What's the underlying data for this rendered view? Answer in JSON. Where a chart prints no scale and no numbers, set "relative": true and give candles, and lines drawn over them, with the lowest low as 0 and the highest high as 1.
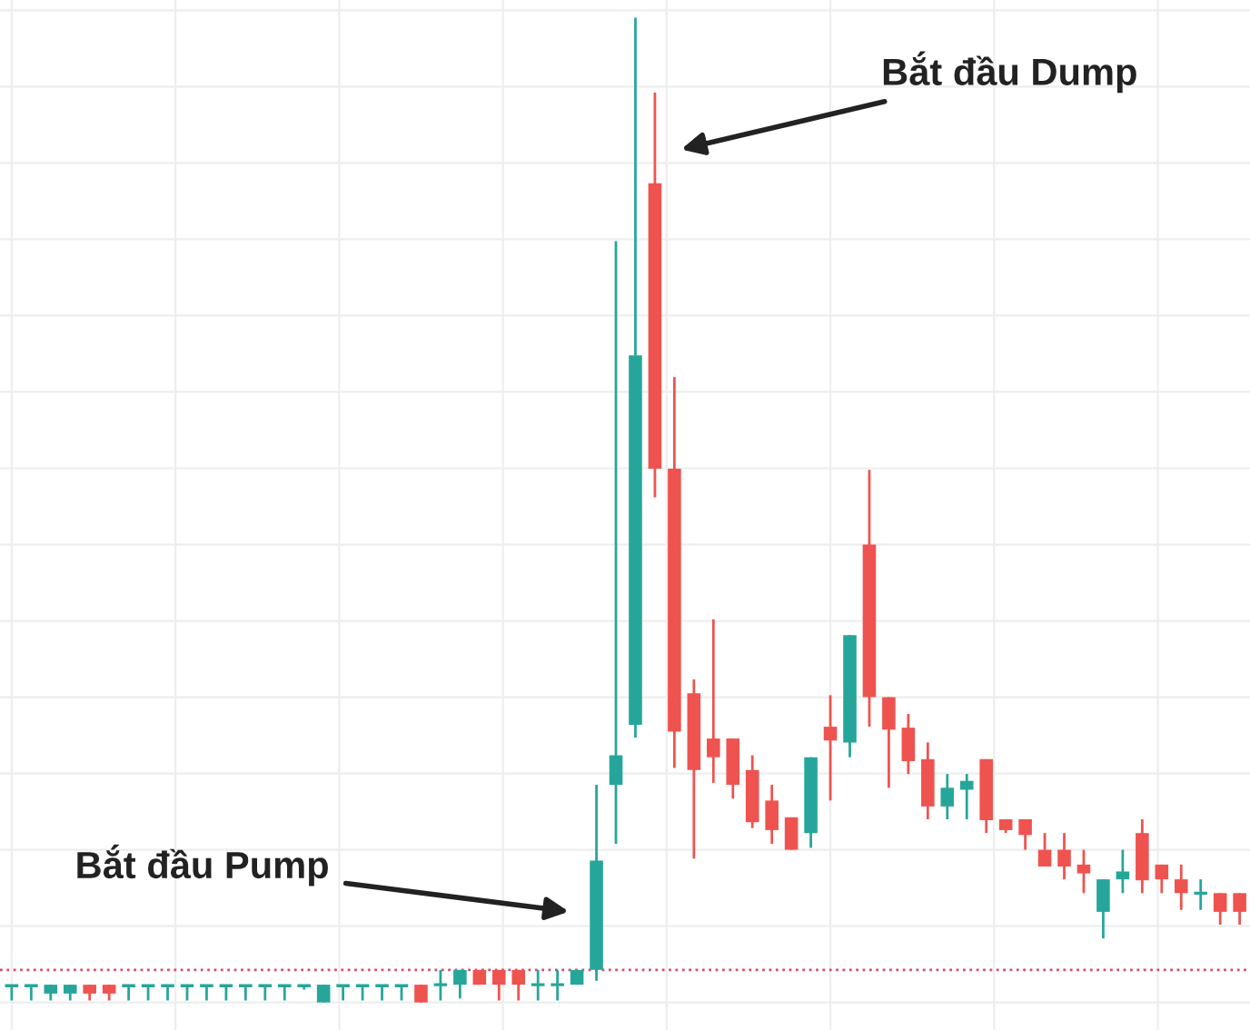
{
  "chart_data": {
    "type": "candlestick",
    "relative": true,
    "grid": true,
    "categories": [
      null,
      null,
      null,
      null,
      null,
      null,
      null,
      null,
      null,
      null,
      null,
      null,
      null,
      null,
      null,
      null,
      null,
      null,
      null,
      null,
      null,
      null,
      null,
      null,
      null,
      null,
      null,
      null,
      null,
      null,
      null,
      null,
      null,
      null,
      null,
      null,
      null,
      null,
      null,
      null,
      null,
      null,
      null,
      null,
      null,
      null,
      null,
      null,
      null,
      null,
      null,
      null,
      null,
      null,
      null,
      null,
      null,
      null,
      null,
      null,
      null,
      null,
      null,
      null
    ],
    "ohlc": [
      [
        0.017,
        0.017,
        0.002,
        0.017
      ],
      [
        0.017,
        0.017,
        0.002,
        0.017
      ],
      [
        0.009,
        0.018,
        0.002,
        0.018
      ],
      [
        0.009,
        0.018,
        0.002,
        0.018
      ],
      [
        0.018,
        0.018,
        0.002,
        0.009
      ],
      [
        0.018,
        0.018,
        0.002,
        0.009
      ],
      [
        0.017,
        0.017,
        0.002,
        0.017
      ],
      [
        0.017,
        0.017,
        0.002,
        0.017
      ],
      [
        0.017,
        0.017,
        0.002,
        0.017
      ],
      [
        0.017,
        0.017,
        0.002,
        0.017
      ],
      [
        0.017,
        0.017,
        0.002,
        0.017
      ],
      [
        0.017,
        0.017,
        0.002,
        0.017
      ],
      [
        0.017,
        0.017,
        0.002,
        0.017
      ],
      [
        0.017,
        0.017,
        0.002,
        0.017
      ],
      [
        0.017,
        0.017,
        0.002,
        0.017
      ],
      [
        0.017,
        0.017,
        0.013,
        0.017
      ],
      [
        0.0,
        0.018,
        0.0,
        0.018
      ],
      [
        0.017,
        0.017,
        0.002,
        0.017
      ],
      [
        0.017,
        0.017,
        0.002,
        0.017
      ],
      [
        0.017,
        0.017,
        0.002,
        0.017
      ],
      [
        0.017,
        0.017,
        0.002,
        0.017
      ],
      [
        0.018,
        0.018,
        0.0,
        0.0
      ],
      [
        0.018,
        0.033,
        0.002,
        0.018
      ],
      [
        0.018,
        0.033,
        0.004,
        0.033
      ],
      [
        0.033,
        0.033,
        0.018,
        0.018
      ],
      [
        0.033,
        0.033,
        0.002,
        0.018
      ],
      [
        0.033,
        0.033,
        0.002,
        0.018
      ],
      [
        0.018,
        0.033,
        0.002,
        0.018
      ],
      [
        0.018,
        0.033,
        0.002,
        0.018
      ],
      [
        0.018,
        0.033,
        0.018,
        0.033
      ],
      [
        0.033,
        0.221,
        0.022,
        0.144
      ],
      [
        0.221,
        0.773,
        0.161,
        0.251
      ],
      [
        0.282,
        1.0,
        0.269,
        0.657
      ],
      [
        0.832,
        0.924,
        0.513,
        0.542
      ],
      [
        0.542,
        0.635,
        0.238,
        0.275
      ],
      [
        0.314,
        0.328,
        0.146,
        0.236
      ],
      [
        0.268,
        0.389,
        0.223,
        0.249
      ],
      [
        0.268,
        0.268,
        0.207,
        0.221
      ],
      [
        0.236,
        0.251,
        0.177,
        0.183
      ],
      [
        0.205,
        0.221,
        0.161,
        0.175
      ],
      [
        0.188,
        0.188,
        0.155,
        0.155
      ],
      [
        0.172,
        0.249,
        0.157,
        0.249
      ],
      [
        0.28,
        0.312,
        0.205,
        0.266
      ],
      [
        0.264,
        0.373,
        0.249,
        0.373
      ],
      [
        0.465,
        0.541,
        0.28,
        0.31
      ],
      [
        0.31,
        0.31,
        0.218,
        0.277
      ],
      [
        0.279,
        0.293,
        0.232,
        0.245
      ],
      [
        0.247,
        0.264,
        0.186,
        0.199
      ],
      [
        0.199,
        0.232,
        0.186,
        0.218
      ],
      [
        0.216,
        0.232,
        0.186,
        0.225
      ],
      [
        0.247,
        0.247,
        0.172,
        0.185
      ],
      [
        0.186,
        0.186,
        0.172,
        0.175
      ],
      [
        0.186,
        0.186,
        0.155,
        0.17
      ],
      [
        0.155,
        0.172,
        0.138,
        0.138
      ],
      [
        0.155,
        0.172,
        0.125,
        0.138
      ],
      [
        0.14,
        0.155,
        0.111,
        0.131
      ],
      [
        0.092,
        0.125,
        0.065,
        0.125
      ],
      [
        0.125,
        0.155,
        0.111,
        0.133
      ],
      [
        0.172,
        0.186,
        0.111,
        0.124
      ],
      [
        0.14,
        0.14,
        0.111,
        0.125
      ],
      [
        0.125,
        0.14,
        0.094,
        0.111
      ],
      [
        0.111,
        0.125,
        0.094,
        0.111
      ],
      [
        0.111,
        0.111,
        0.079,
        0.092
      ],
      [
        0.111,
        0.111,
        0.079,
        0.092
      ]
    ],
    "colors": [
      "#26a69a",
      "#26a69a",
      "#26a69a",
      "#26a69a",
      "#ef5350",
      "#ef5350",
      "#26a69a",
      "#26a69a",
      "#26a69a",
      "#26a69a",
      "#26a69a",
      "#26a69a",
      "#26a69a",
      "#26a69a",
      "#26a69a",
      "#26a69a",
      "#26a69a",
      "#26a69a",
      "#26a69a",
      "#26a69a",
      "#26a69a",
      "#ef5350",
      "#26a69a",
      "#26a69a",
      "#ef5350",
      "#ef5350",
      "#ef5350",
      "#26a69a",
      "#26a69a",
      "#26a69a",
      "#26a69a",
      "#26a69a",
      "#26a69a",
      "#ef5350",
      "#ef5350",
      "#ef5350",
      "#ef5350",
      "#ef5350",
      "#ef5350",
      "#ef5350",
      "#ef5350",
      "#26a69a",
      "#ef5350",
      "#26a69a",
      "#ef5350",
      "#ef5350",
      "#ef5350",
      "#ef5350",
      "#26a69a",
      "#26a69a",
      "#ef5350",
      "#ef5350",
      "#ef5350",
      "#ef5350",
      "#ef5350",
      "#ef5350",
      "#26a69a",
      "#26a69a",
      "#ef5350",
      "#ef5350",
      "#ef5350",
      "#26a69a",
      "#ef5350",
      "#ef5350"
    ],
    "ref_lines": [
      {
        "axis": "y",
        "value": 0.033,
        "color": "#d0506a",
        "line_style": "dotted"
      }
    ],
    "annotations": [
      "Bắt đầu Dump",
      "Bắt đầu Pump"
    ]
  }
}
